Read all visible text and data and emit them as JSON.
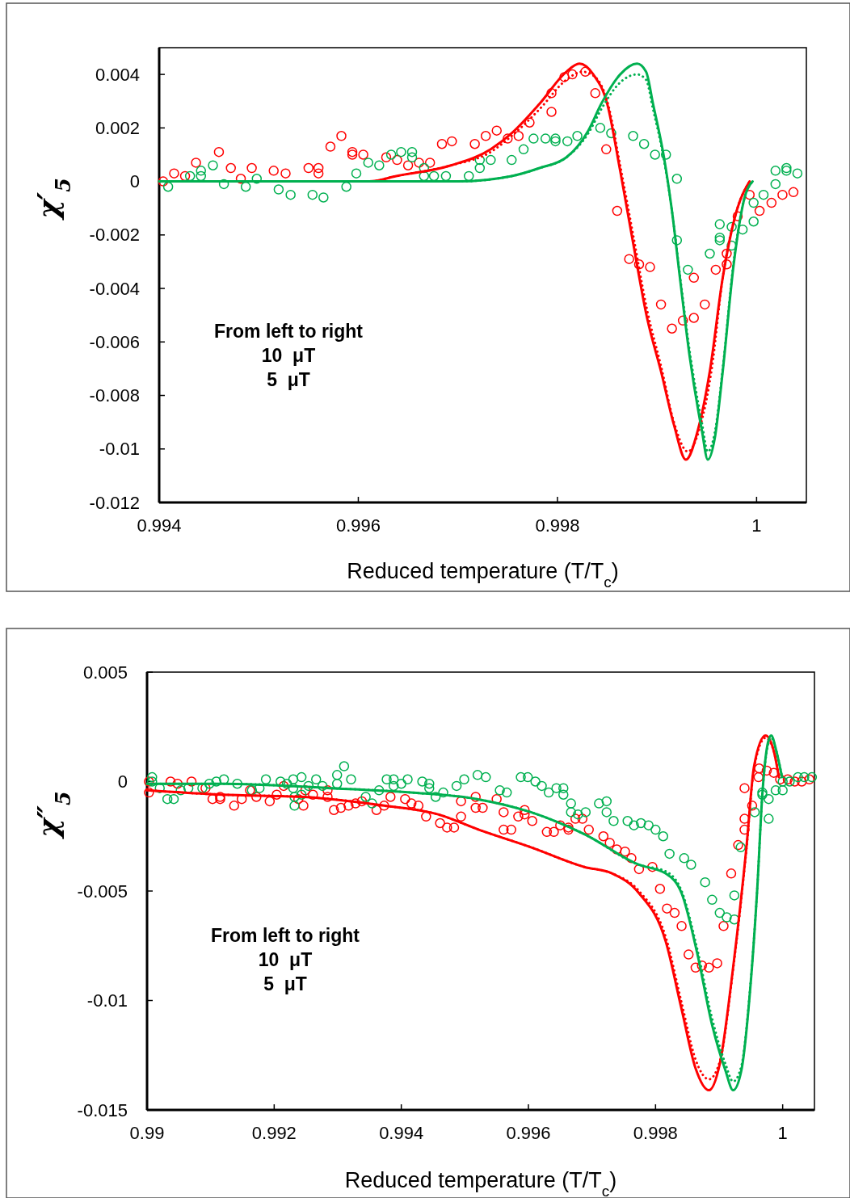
{
  "chart_data": [
    {
      "type": "scatter",
      "xlabel": "Reduced temperature (T/T$_{c}$)",
      "ylabel": "χ′$_{5}$",
      "xlim": [
        0.994,
        1.0005
      ],
      "ylim": [
        -0.012,
        0.005
      ],
      "xticks": [
        0.994,
        0.996,
        0.998,
        1
      ],
      "yticks": [
        -0.012,
        -0.01,
        -0.008,
        -0.006,
        -0.004,
        -0.002,
        0,
        0.002,
        0.004
      ],
      "grid": false,
      "annotations": [
        "From left to right",
        "10  μT",
        "5  μT"
      ],
      "series": [
        {
          "color": "#ff0000",
          "marker": "circle",
          "x": [
            0.99404,
            0.99415,
            0.99426,
            0.99437,
            0.9946,
            0.99472,
            0.99482,
            0.99493,
            0.99515,
            0.99527,
            0.9955,
            0.9956,
            0.9956,
            0.99572,
            0.99583,
            0.99594,
            0.99594,
            0.99605,
            0.99628,
            0.99639,
            0.9965,
            0.99661,
            0.99672,
            0.99684,
            0.99694,
            0.99717,
            0.99728,
            0.99739,
            0.9975,
            0.99761,
            0.99772,
            0.99794,
            0.99794,
            0.99807,
            0.99815,
            0.99828,
            0.99838,
            0.99849,
            0.9986,
            0.99872,
            0.99882,
            0.99893,
            0.99904,
            0.99915,
            0.99926,
            0.99937,
            0.99937,
            0.99948,
            0.99959,
            0.9997,
            0.9997,
            0.99981,
            0.99993,
            1.00003,
            1.00015,
            1.00026,
            1.00037
          ],
          "values": [
            0,
            0.0003,
            0.0002,
            0.0007,
            0.0011,
            0.0005,
            0.0001,
            0.0005,
            0.0004,
            0.0003,
            0.0005,
            0.0005,
            0.0003,
            0.0013,
            0.0017,
            0.0011,
            0.001,
            0.001,
            0.0009,
            0.0008,
            0.0006,
            0.0007,
            0.0007,
            0.0014,
            0.0015,
            0.0014,
            0.0017,
            0.0019,
            0.0016,
            0.0017,
            0.0022,
            0.0026,
            0.0033,
            0.0039,
            0.004,
            0.0041,
            0.0033,
            0.0012,
            -0.0011,
            -0.0029,
            -0.0031,
            -0.0032,
            -0.0046,
            -0.0055,
            -0.0052,
            -0.0051,
            -0.0036,
            -0.0046,
            -0.0033,
            -0.0031,
            -0.0027,
            -0.0013,
            -0.0005,
            -0.0011,
            -0.0008,
            -0.0005,
            -0.0004
          ]
        },
        {
          "color": "#00b050",
          "marker": "circle",
          "x": [
            0.99409,
            0.99431,
            0.99442,
            0.99442,
            0.99454,
            0.99465,
            0.99487,
            0.99498,
            0.9952,
            0.99532,
            0.99554,
            0.99565,
            0.99588,
            0.99598,
            0.9961,
            0.99621,
            0.99633,
            0.99643,
            0.99654,
            0.99654,
            0.99666,
            0.99666,
            0.99676,
            0.99688,
            0.99711,
            0.99722,
            0.99722,
            0.99733,
            0.99754,
            0.99766,
            0.99776,
            0.99788,
            0.99798,
            0.99798,
            0.9981,
            0.9982,
            0.99843,
            0.99854,
            0.99876,
            0.99887,
            0.99898,
            0.99909,
            0.9992,
            0.9992,
            0.99931,
            0.99953,
            0.99963,
            0.99963,
            0.99963,
            0.99975,
            0.99975,
            0.99986,
            0.99997,
            0.99997,
            1.00007,
            1.00019,
            1.00019,
            1.0003,
            1.0003,
            1.00041
          ],
          "values": [
            -0.0002,
            0.0002,
            0.0004,
            0.0002,
            0.0006,
            -0.0001,
            -0.0002,
            0.0001,
            -0.0003,
            -0.0005,
            -0.0005,
            -0.0006,
            -0.0002,
            0.0003,
            0.0007,
            0.0006,
            0.001,
            0.0011,
            0.0011,
            0.0009,
            0.0005,
            0.0002,
            0.0002,
            0.0002,
            0.0002,
            0.0005,
            0.0008,
            0.0008,
            0.0008,
            0.0012,
            0.0016,
            0.0016,
            0.0016,
            0.0015,
            0.0015,
            0.0017,
            0.002,
            0.0018,
            0.0017,
            0.0014,
            0.001,
            0.001,
            0.0001,
            -0.0022,
            -0.0033,
            -0.0027,
            -0.0016,
            -0.0021,
            -0.0022,
            -0.0017,
            -0.0024,
            -0.0018,
            -0.0015,
            -0.0008,
            -0.0005,
            -0.0001,
            0.0004,
            0.0005,
            0.0004,
            0.0003
          ]
        },
        {
          "type": "line",
          "color": "#ff0000",
          "line_style": "solid",
          "x": [
            0.994,
            0.9959,
            0.99611,
            0.99638,
            0.99693,
            0.99733,
            0.99754,
            0.99782,
            0.99809,
            0.99822,
            0.99836,
            0.9985,
            0.99863,
            0.99876,
            0.9989,
            0.99904,
            0.99917,
            0.99929,
            0.99941,
            0.99953,
            0.99966,
            0.9998,
            0.99993
          ],
          "values": [
            0,
            0,
            0,
            0.0002,
            0.0006,
            0.0012,
            0.0018,
            0.0029,
            0.0041,
            0.0044,
            0.004,
            0.0029,
            0.0004,
            -0.0023,
            -0.0051,
            -0.0071,
            -0.0091,
            -0.0104,
            -0.0093,
            -0.0071,
            -0.0036,
            -0.0011,
            0
          ]
        },
        {
          "type": "line",
          "color": "#ff0000",
          "line_style": "dotted",
          "x": [
            0.994,
            0.9959,
            0.99611,
            0.99638,
            0.99693,
            0.99733,
            0.99754,
            0.99782,
            0.99809,
            0.99825,
            0.99838,
            0.9985,
            0.99863,
            0.99876,
            0.9989,
            0.99904,
            0.99917,
            0.99931,
            0.99943,
            0.99955,
            0.99966,
            0.9998,
            0.99993
          ],
          "values": [
            0,
            0,
            0,
            0.0002,
            0.0006,
            0.0011,
            0.0017,
            0.0027,
            0.0038,
            0.0041,
            0.0039,
            0.003,
            0.0006,
            -0.002,
            -0.0048,
            -0.0069,
            -0.009,
            -0.0101,
            -0.0092,
            -0.007,
            -0.0036,
            -0.0011,
            0
          ]
        },
        {
          "type": "line",
          "color": "#00b050",
          "line_style": "solid",
          "x": [
            0.994,
            0.997,
            0.99754,
            0.99782,
            0.99809,
            0.99831,
            0.99844,
            0.99863,
            0.9988,
            0.99889,
            0.99896,
            0.99907,
            0.99915,
            0.99923,
            0.99933,
            0.99945,
            0.99951,
            0.99958,
            0.99966,
            0.99977,
            0.99988,
            0.99996
          ],
          "values": [
            0,
            0,
            0.0002,
            0.0005,
            0.0009,
            0.0019,
            0.0029,
            0.004,
            0.0044,
            0.0041,
            0.0029,
            0.0009,
            -0.0011,
            -0.0036,
            -0.0066,
            -0.0093,
            -0.0104,
            -0.0096,
            -0.0071,
            -0.0031,
            -0.0006,
            0
          ]
        },
        {
          "type": "line",
          "color": "#00b050",
          "line_style": "dotted",
          "x": [
            0.994,
            0.997,
            0.99754,
            0.99782,
            0.99809,
            0.99831,
            0.99844,
            0.99863,
            0.9988,
            0.99889,
            0.99896,
            0.99907,
            0.99915,
            0.99923,
            0.99933,
            0.99945,
            0.99951,
            0.99958,
            0.99966,
            0.99977,
            0.99988,
            0.99996
          ],
          "values": [
            0,
            0,
            0.0002,
            0.0005,
            0.0009,
            0.0018,
            0.0027,
            0.0037,
            0.004,
            0.0038,
            0.0027,
            0.0008,
            -0.0011,
            -0.0035,
            -0.0064,
            -0.009,
            -0.0101,
            -0.0094,
            -0.007,
            -0.003,
            -0.0006,
            0
          ]
        }
      ]
    },
    {
      "type": "scatter",
      "xlabel": "Reduced temperature (T/T$_{c}$)",
      "ylabel": "χ″$_{5}$",
      "xlim": [
        0.99,
        1.0005
      ],
      "ylim": [
        -0.015,
        0.005
      ],
      "xticks": [
        0.99,
        0.992,
        0.994,
        0.996,
        0.998,
        1
      ],
      "yticks": [
        -0.015,
        -0.01,
        -0.005,
        0,
        0.005
      ],
      "grid": false,
      "annotations": [
        "From left to right",
        "10  μT",
        "5  μT"
      ],
      "series": [
        {
          "color": "#ff0000",
          "marker": "circle",
          "x": [
            0.99003,
            0.99003,
            0.99037,
            0.99048,
            0.9907,
            0.99092,
            0.99103,
            0.99115,
            0.99115,
            0.99137,
            0.99149,
            0.99162,
            0.99172,
            0.99193,
            0.99204,
            0.99215,
            0.99238,
            0.99246,
            0.99249,
            0.99261,
            0.99284,
            0.99284,
            0.99294,
            0.99305,
            0.99317,
            0.99328,
            0.99338,
            0.99361,
            0.99373,
            0.99383,
            0.99406,
            0.99416,
            0.99427,
            0.99439,
            0.99461,
            0.99472,
            0.99483,
            0.99494,
            0.99494,
            0.99517,
            0.99517,
            0.99528,
            0.9955,
            0.99561,
            0.99561,
            0.99573,
            0.99584,
            0.99594,
            0.99594,
            0.99606,
            0.99629,
            0.9964,
            0.9965,
            0.99663,
            0.99663,
            0.99674,
            0.99685,
            0.99695,
            0.99718,
            0.99728,
            0.99739,
            0.99752,
            0.99762,
            0.99774,
            0.99795,
            0.99807,
            0.99818,
            0.9983,
            0.99841,
            0.99852,
            0.99863,
            0.99873,
            0.99884,
            0.99897,
            0.99907,
            0.99919,
            0.9993,
            0.9994,
            0.9994,
            0.99952,
            0.9994,
            0.99962,
            0.99963,
            0.99975,
            0.99986,
            0.99996,
            1.00008,
            1.00019,
            1.0003,
            1.00042
          ],
          "values": [
            0,
            -0.0005,
            0,
            -0.0001,
            0,
            -0.0003,
            -0.0008,
            -0.0008,
            -0.0007,
            -0.0011,
            -0.0008,
            -0.0004,
            -0.0007,
            -0.0009,
            -0.0006,
            -0.0002,
            -0.0008,
            -0.0011,
            -0.0004,
            -0.0006,
            -0.0004,
            -0.0007,
            -0.0013,
            -0.0012,
            -0.0011,
            -0.001,
            -0.0009,
            -0.0013,
            -0.0011,
            -0.0007,
            -0.0008,
            -0.001,
            -0.0011,
            -0.0016,
            -0.0019,
            -0.0021,
            -0.0021,
            -0.0016,
            -0.0009,
            -0.0012,
            -0.0007,
            -0.0012,
            -0.0008,
            -0.0014,
            -0.0022,
            -0.0022,
            -0.0016,
            -0.0013,
            -0.0015,
            -0.0018,
            -0.0023,
            -0.0023,
            -0.002,
            -0.0021,
            -0.0022,
            -0.0017,
            -0.0017,
            -0.0022,
            -0.0025,
            -0.0028,
            -0.0031,
            -0.0032,
            -0.0035,
            -0.004,
            -0.0039,
            -0.0049,
            -0.0058,
            -0.006,
            -0.0066,
            -0.0079,
            -0.0085,
            -0.0084,
            -0.0085,
            -0.0083,
            -0.0066,
            -0.0042,
            -0.0029,
            -0.0022,
            -0.0017,
            -0.0011,
            -0.0003,
            0.0002,
            0.0006,
            0.0005,
            0.0004,
            0.0001,
            0.0001,
            0,
            0,
            0.0001
          ]
        },
        {
          "color": "#00b050",
          "marker": "circle",
          "x": [
            0.99008,
            0.99008,
            0.9902,
            0.99032,
            0.99042,
            0.99053,
            0.99065,
            0.99087,
            0.99098,
            0.99109,
            0.99121,
            0.99142,
            0.99165,
            0.99177,
            0.99187,
            0.9921,
            0.9922,
            0.9923,
            0.9923,
            0.99232,
            0.99232,
            0.99243,
            0.99243,
            0.99254,
            0.99266,
            0.99276,
            0.99299,
            0.99299,
            0.9931,
            0.99321,
            0.99344,
            0.99354,
            0.99365,
            0.99377,
            0.99388,
            0.99388,
            0.994,
            0.9941,
            0.99433,
            0.99444,
            0.99444,
            0.99454,
            0.99466,
            0.99487,
            0.99499,
            0.9952,
            0.99533,
            0.99555,
            0.99566,
            0.99588,
            0.99599,
            0.99611,
            0.99621,
            0.99632,
            0.99644,
            0.99655,
            0.99655,
            0.99667,
            0.99667,
            0.99678,
            0.9969,
            0.99711,
            0.99723,
            0.99723,
            0.99734,
            0.99756,
            0.99766,
            0.99777,
            0.99789,
            0.998,
            0.99812,
            0.99822,
            0.99845,
            0.99856,
            0.99878,
            0.99889,
            0.99901,
            0.99912,
            0.99924,
            0.99924,
            0.99934,
            0.99956,
            0.99968,
            0.99968,
            0.99978,
            0.99978,
            0.99989,
            1.0,
            1.0,
            1.00011,
            1.00024,
            1.00034,
            1.00046
          ],
          "values": [
            0.0002,
            0,
            -0.0003,
            -0.0008,
            -0.0008,
            -0.0004,
            -0.0003,
            -0.0003,
            -0.0001,
            0,
            0.0001,
            -0.0001,
            -0.0004,
            -0.0003,
            0.0001,
            0,
            -0.0001,
            0.0001,
            -0.0003,
            -0.0007,
            -0.0011,
            0.0002,
            -0.0006,
            -0.0002,
            0.0001,
            -0.0002,
            0.0003,
            -0.0001,
            0.0007,
            0.0001,
            -0.0007,
            -0.001,
            -0.0004,
            0.0001,
            0.0001,
            -0.0002,
            -0.0001,
            0.0001,
            0,
            -0.0001,
            -0.0003,
            -0.0007,
            -0.0005,
            -0.0002,
            0.0001,
            0.0003,
            0.0002,
            -0.0004,
            -0.0005,
            0.0002,
            0.0002,
            0,
            -0.0002,
            -0.0005,
            -0.0003,
            -0.0003,
            -0.0006,
            -0.001,
            -0.0014,
            -0.0015,
            -0.0014,
            -0.001,
            -0.0009,
            -0.0014,
            -0.0018,
            -0.0018,
            -0.002,
            -0.0019,
            -0.002,
            -0.0022,
            -0.0025,
            -0.0033,
            -0.0035,
            -0.0038,
            -0.0046,
            -0.0054,
            -0.006,
            -0.0062,
            -0.0063,
            -0.0052,
            -0.003,
            -0.0014,
            -0.0006,
            -0.0005,
            -0.0008,
            -0.0017,
            -0.0004,
            -0.0004,
            0,
            0,
            0.0002,
            0.0002,
            0.0002
          ]
        },
        {
          "type": "line",
          "color": "#ff0000",
          "line_style": "solid",
          "x": [
            0.99,
            0.99118,
            0.99246,
            0.99373,
            0.99458,
            0.99522,
            0.99604,
            0.99688,
            0.99732,
            0.99774,
            0.99816,
            0.99841,
            0.99863,
            0.99884,
            0.99901,
            0.99922,
            0.99943,
            0.99955,
            0.99973,
            0.99986,
            0.99994
          ],
          "values": [
            -0.0004,
            -0.0006,
            -0.0007,
            -0.0011,
            -0.0015,
            -0.0022,
            -0.003,
            -0.0039,
            -0.0042,
            -0.0051,
            -0.0073,
            -0.0104,
            -0.0131,
            -0.0141,
            -0.0129,
            -0.0085,
            -0.003,
            0.0007,
            0.0021,
            0.0014,
            0.0002
          ]
        },
        {
          "type": "line",
          "color": "#ff0000",
          "line_style": "dotted",
          "x": [
            0.99,
            0.99118,
            0.99246,
            0.99373,
            0.99458,
            0.99522,
            0.99604,
            0.99688,
            0.99732,
            0.99774,
            0.99816,
            0.99841,
            0.99863,
            0.99884,
            0.99901,
            0.99922,
            0.99943,
            0.99955,
            0.99973,
            0.99986,
            0.99994
          ],
          "values": [
            -0.0004,
            -0.0006,
            -0.0007,
            -0.0011,
            -0.0015,
            -0.0022,
            -0.003,
            -0.0039,
            -0.0042,
            -0.005,
            -0.0071,
            -0.0101,
            -0.0127,
            -0.0136,
            -0.0128,
            -0.0086,
            -0.0031,
            0.0006,
            0.002,
            0.0014,
            0.0002
          ]
        },
        {
          "type": "line",
          "color": "#00b050",
          "line_style": "solid",
          "x": [
            0.99,
            0.99118,
            0.99288,
            0.99415,
            0.99519,
            0.99604,
            0.99688,
            0.99774,
            0.99816,
            0.99841,
            0.99866,
            0.99888,
            0.9991,
            0.99922,
            0.99935,
            0.99948,
            0.9996,
            0.99968,
            0.99977,
            0.99982,
            0.9999,
            0.99999
          ],
          "values": [
            -0.0001,
            -0.0001,
            -0.0003,
            -0.0005,
            -0.0008,
            -0.0014,
            -0.0024,
            -0.0038,
            -0.0042,
            -0.0051,
            -0.0079,
            -0.011,
            -0.0132,
            -0.0141,
            -0.0132,
            -0.0098,
            -0.0049,
            -0.0006,
            0.0018,
            0.0021,
            0.0014,
            0.0002
          ]
        },
        {
          "type": "line",
          "color": "#00b050",
          "line_style": "dotted",
          "x": [
            0.99,
            0.99118,
            0.99288,
            0.99415,
            0.99519,
            0.99604,
            0.99688,
            0.99774,
            0.99816,
            0.99841,
            0.99866,
            0.99888,
            0.9991,
            0.99922,
            0.99935,
            0.99948,
            0.9996,
            0.99968,
            0.99977,
            0.99982,
            0.9999,
            0.99999
          ],
          "values": [
            -0.0001,
            -0.0001,
            -0.0003,
            -0.0005,
            -0.0008,
            -0.0014,
            -0.0024,
            -0.0038,
            -0.0041,
            -0.005,
            -0.0077,
            -0.0107,
            -0.0129,
            -0.0137,
            -0.013,
            -0.0097,
            -0.0049,
            -0.0006,
            0.0017,
            0.002,
            0.0014,
            0.0002
          ]
        }
      ]
    }
  ]
}
